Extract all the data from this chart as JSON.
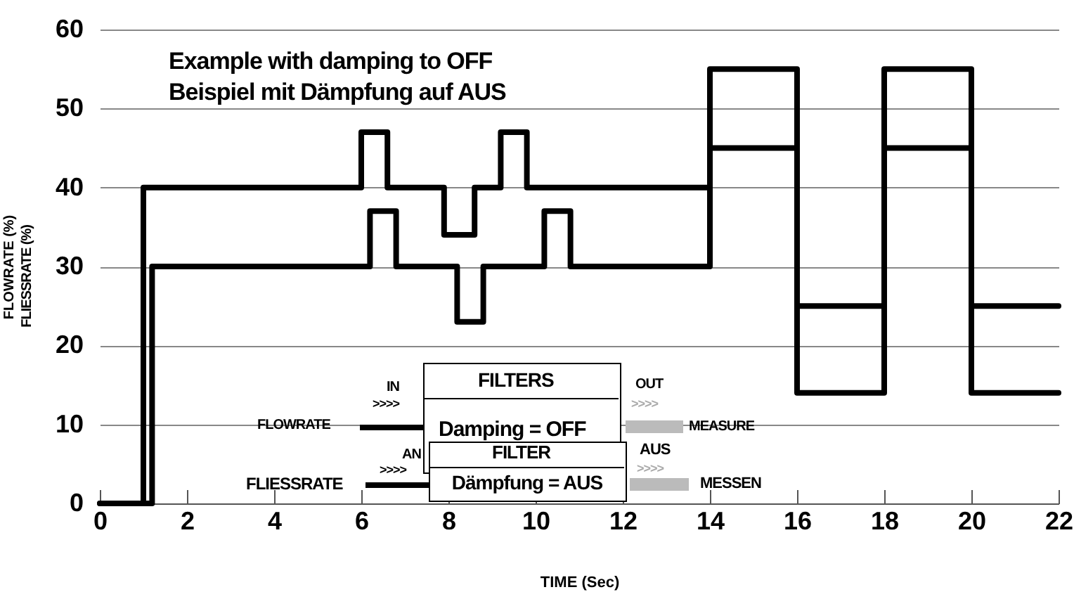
{
  "chart_data": {
    "type": "step",
    "title": "Example with damping to OFF",
    "subtitle": "Beispiel mit Dämpfung auf AUS",
    "xlabel": "TIME (Sec)",
    "ylabel": "FLOWRATE (%)",
    "annotations": [
      "FLOWRATE",
      "IN",
      "FILTERS",
      "Damping = OFF",
      "OUT",
      "MEASURE",
      "FLIESSRATE",
      "AN",
      "FILTER",
      "Dämpfung = AUS",
      "AUS",
      "MESSEN",
      "FLIESSRATE (%)",
      ">>>>"
    ],
    "series": [
      {
        "color": "#000000",
        "x": [
          0,
          1,
          6,
          6.6,
          7.9,
          8.6,
          9.2,
          9.8,
          14,
          16,
          18,
          20,
          22
        ],
        "values": [
          0,
          40,
          47,
          40,
          34,
          40,
          47,
          40,
          55,
          25,
          55,
          25,
          25
        ]
      },
      {
        "color": "#000000",
        "x": [
          0,
          1.2,
          6.2,
          6.8,
          8.2,
          8.8,
          10.2,
          10.8,
          14,
          16,
          18,
          20,
          22
        ],
        "values": [
          0,
          30,
          37,
          30,
          23,
          30,
          37,
          30,
          45,
          14,
          45,
          14,
          14
        ]
      }
    ],
    "xlim": [
      0,
      22
    ],
    "xticks": [
      0,
      2,
      4,
      6,
      8,
      10,
      12,
      14,
      16,
      18,
      20,
      22
    ],
    "ylim": [
      0,
      60
    ],
    "yticks": [
      0,
      10,
      20,
      30,
      40,
      50,
      60
    ],
    "grid": "y",
    "legend": false,
    "marker": "none",
    "line_style": "solid"
  }
}
